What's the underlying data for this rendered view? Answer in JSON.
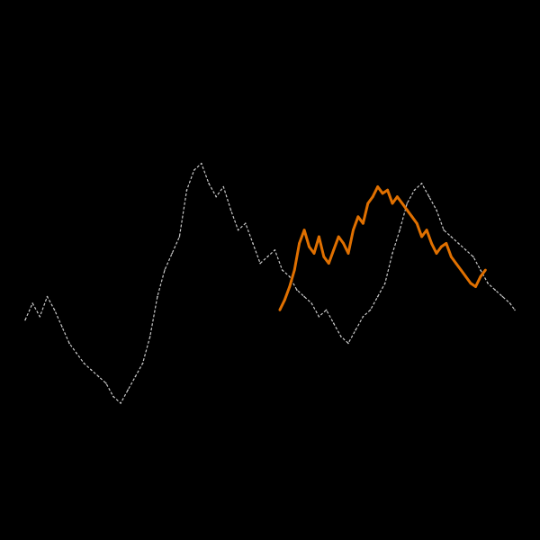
{
  "chart_data": {
    "type": "line",
    "title": "",
    "xlabel": "",
    "ylabel": "",
    "axes_visible": false,
    "grid": false,
    "legend": "none",
    "background": "#000000",
    "xlim": [
      0,
      100
    ],
    "ylim": [
      0,
      100
    ],
    "series": [
      {
        "color": "#c8c8c8",
        "line_style": "dashed",
        "x": [
          0,
          1.5,
          3,
          4.5,
          6,
          7.5,
          9,
          10.5,
          12,
          13.5,
          15,
          16.5,
          18,
          19.5,
          21,
          22.5,
          24,
          25.5,
          27,
          28.5,
          30,
          31.5,
          33,
          34.5,
          36,
          37.5,
          39,
          40.5,
          42,
          43.5,
          45,
          46.5,
          48,
          49.5,
          51,
          52.5,
          54,
          55.5,
          57,
          58.5,
          60,
          61.5,
          63,
          64.5,
          66,
          67.5,
          69,
          70.5,
          72,
          73.5,
          75,
          76.5,
          78,
          79.5,
          81,
          82.5,
          84,
          85.5,
          87,
          88.5,
          90,
          91.5,
          93,
          94.5,
          96,
          97.5,
          99,
          100
        ],
        "y": [
          35,
          40,
          36,
          42,
          38,
          33,
          28,
          25,
          22,
          20,
          18,
          16,
          12,
          10,
          14,
          18,
          22,
          30,
          42,
          50,
          55,
          60,
          74,
          80,
          82,
          76,
          72,
          75,
          68,
          62,
          64,
          58,
          52,
          54,
          56,
          50,
          48,
          44,
          42,
          40,
          36,
          38,
          34,
          30,
          28,
          32,
          36,
          38,
          42,
          46,
          55,
          62,
          70,
          74,
          76,
          72,
          68,
          62,
          60,
          58,
          56,
          54,
          50,
          46,
          44,
          42,
          40,
          38
        ]
      },
      {
        "color": "#e07000",
        "line_style": "solid",
        "x": [
          52,
          53,
          54,
          55,
          56,
          57,
          58,
          59,
          60,
          61,
          62,
          63,
          64,
          65,
          66,
          67,
          68,
          69,
          70,
          71,
          72,
          73,
          74,
          75,
          76,
          77,
          78,
          79,
          80,
          81,
          82,
          83,
          84,
          85,
          86,
          87,
          88,
          89,
          90,
          91,
          92,
          93,
          94
        ],
        "y": [
          38,
          41,
          45,
          50,
          58,
          62,
          57,
          55,
          60,
          54,
          52,
          56,
          60,
          58,
          55,
          62,
          66,
          64,
          70,
          72,
          75,
          73,
          74,
          70,
          72,
          70,
          68,
          66,
          64,
          60,
          62,
          58,
          55,
          57,
          58,
          54,
          52,
          50,
          48,
          46,
          45,
          48,
          50
        ]
      }
    ]
  }
}
